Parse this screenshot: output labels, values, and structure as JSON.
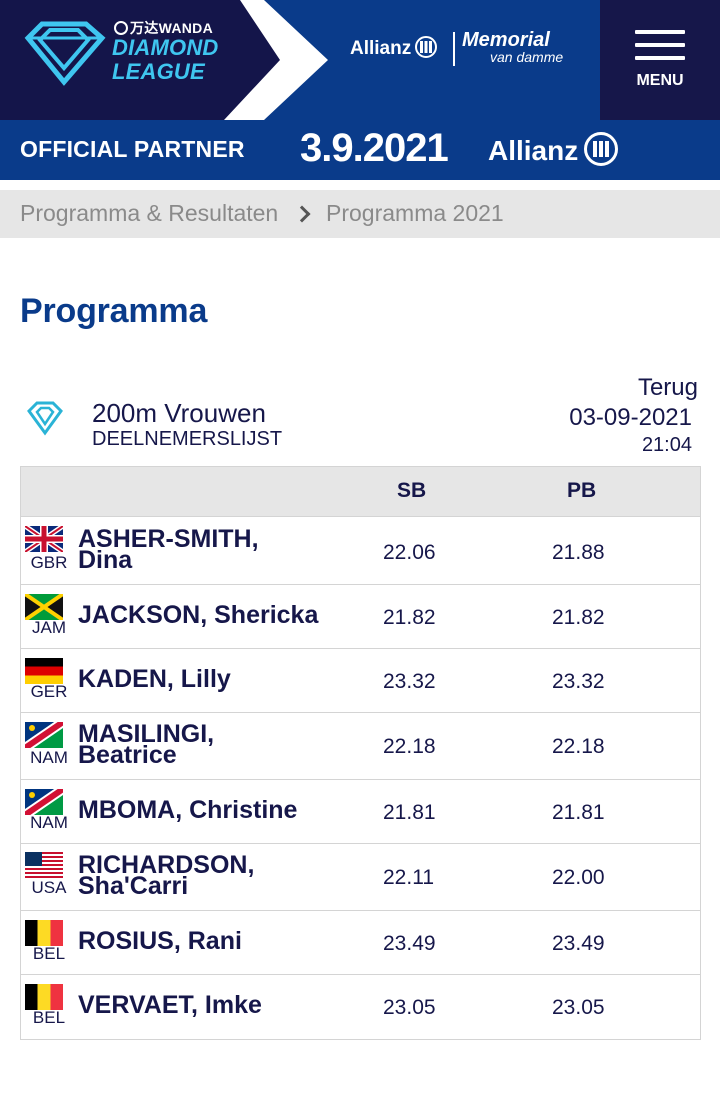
{
  "header": {
    "brand_top": "万达WANDA",
    "brand_line1": "DIAMOND",
    "brand_line2": "LEAGUE",
    "allianz": "Allianz",
    "memorial_line1": "Memorial",
    "memorial_line2": "van damme",
    "menu_label": "MENU"
  },
  "partner_band": {
    "label": "OFFICIAL PARTNER",
    "date": "3.9.2021",
    "sponsor": "Allianz"
  },
  "breadcrumb": {
    "items": [
      "Programma & Resultaten",
      "Programma 2021"
    ]
  },
  "page_title": "Programma",
  "event": {
    "name": "200m Vrouwen",
    "subtitle": "DEELNEMERSLIJST",
    "back_label": "Terug",
    "date": "03-09-2021",
    "time": "21:04"
  },
  "table": {
    "headers": {
      "sb": "SB",
      "pb": "PB"
    },
    "rows": [
      {
        "country": "GBR",
        "name_line1": "ASHER-SMITH,",
        "name_line2": "Dina",
        "sb": "22.06",
        "pb": "21.88"
      },
      {
        "country": "JAM",
        "name_line1": "JACKSON, Shericka",
        "name_line2": "",
        "sb": "21.82",
        "pb": "21.82"
      },
      {
        "country": "GER",
        "name_line1": "KADEN, Lilly",
        "name_line2": "",
        "sb": "23.32",
        "pb": "23.32"
      },
      {
        "country": "NAM",
        "name_line1": "MASILINGI,",
        "name_line2": "Beatrice",
        "sb": "22.18",
        "pb": "22.18"
      },
      {
        "country": "NAM",
        "name_line1": "MBOMA, Christine",
        "name_line2": "",
        "sb": "21.81",
        "pb": "21.81"
      },
      {
        "country": "USA",
        "name_line1": "RICHARDSON,",
        "name_line2": "Sha'Carri",
        "sb": "22.11",
        "pb": "22.00"
      },
      {
        "country": "BEL",
        "name_line1": "ROSIUS, Rani",
        "name_line2": "",
        "sb": "23.49",
        "pb": "23.49"
      },
      {
        "country": "BEL",
        "name_line1": "VERVAET, Imke",
        "name_line2": "",
        "sb": "23.05",
        "pb": "23.05"
      }
    ]
  },
  "colors": {
    "navy": "#16174a",
    "brand_blue": "#0a3b8a",
    "cyan": "#3fc6f0",
    "grey_band": "#e6e6e6"
  },
  "icons": [
    "diamond-league-logo-icon",
    "allianz-logo-icon",
    "hamburger-menu-icon",
    "chevron-right-icon",
    "diamond-icon",
    "flag-icons"
  ]
}
